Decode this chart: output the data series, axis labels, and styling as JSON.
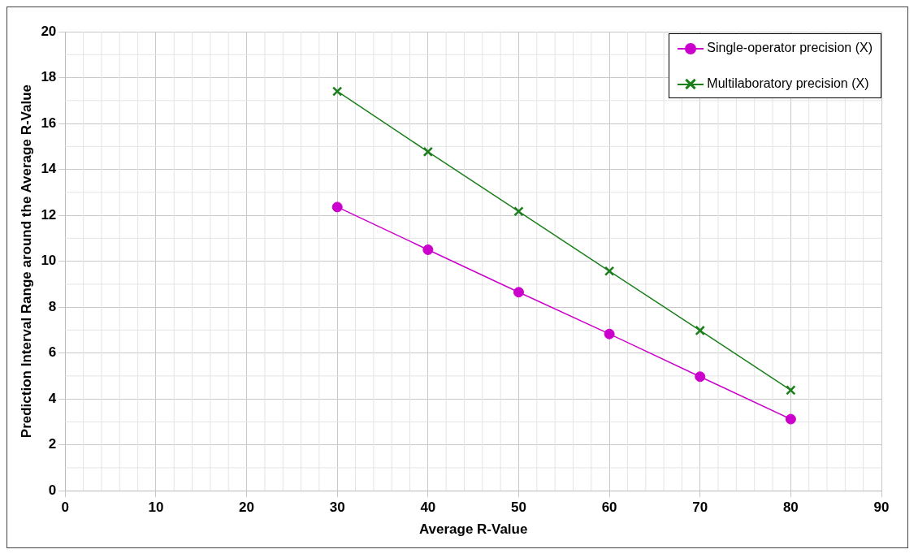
{
  "chart_data": {
    "type": "line",
    "xlabel": "Average R-Value",
    "ylabel": "Prediction Interval Range around the Average R-Value",
    "x": [
      30,
      40,
      50,
      60,
      70,
      80
    ],
    "series": [
      {
        "name": "Single-operator precision (X)",
        "color": "#cc00cc",
        "marker": "circle",
        "values": [
          12.36,
          10.5,
          8.65,
          6.83,
          4.97,
          3.12
        ]
      },
      {
        "name": "Multilaboratory precision (X)",
        "color": "#1a7f1a",
        "marker": "cross",
        "values": [
          17.4,
          14.77,
          12.17,
          9.57,
          6.98,
          4.38
        ]
      }
    ],
    "xlim": [
      0,
      90
    ],
    "xticks": [
      0,
      10,
      20,
      30,
      40,
      50,
      60,
      70,
      80,
      90
    ],
    "ylim": [
      0,
      20
    ],
    "yticks": [
      0,
      2,
      4,
      6,
      8,
      10,
      12,
      14,
      16,
      18,
      20
    ],
    "grid": true,
    "legend": "top right",
    "line_style": "solid"
  }
}
